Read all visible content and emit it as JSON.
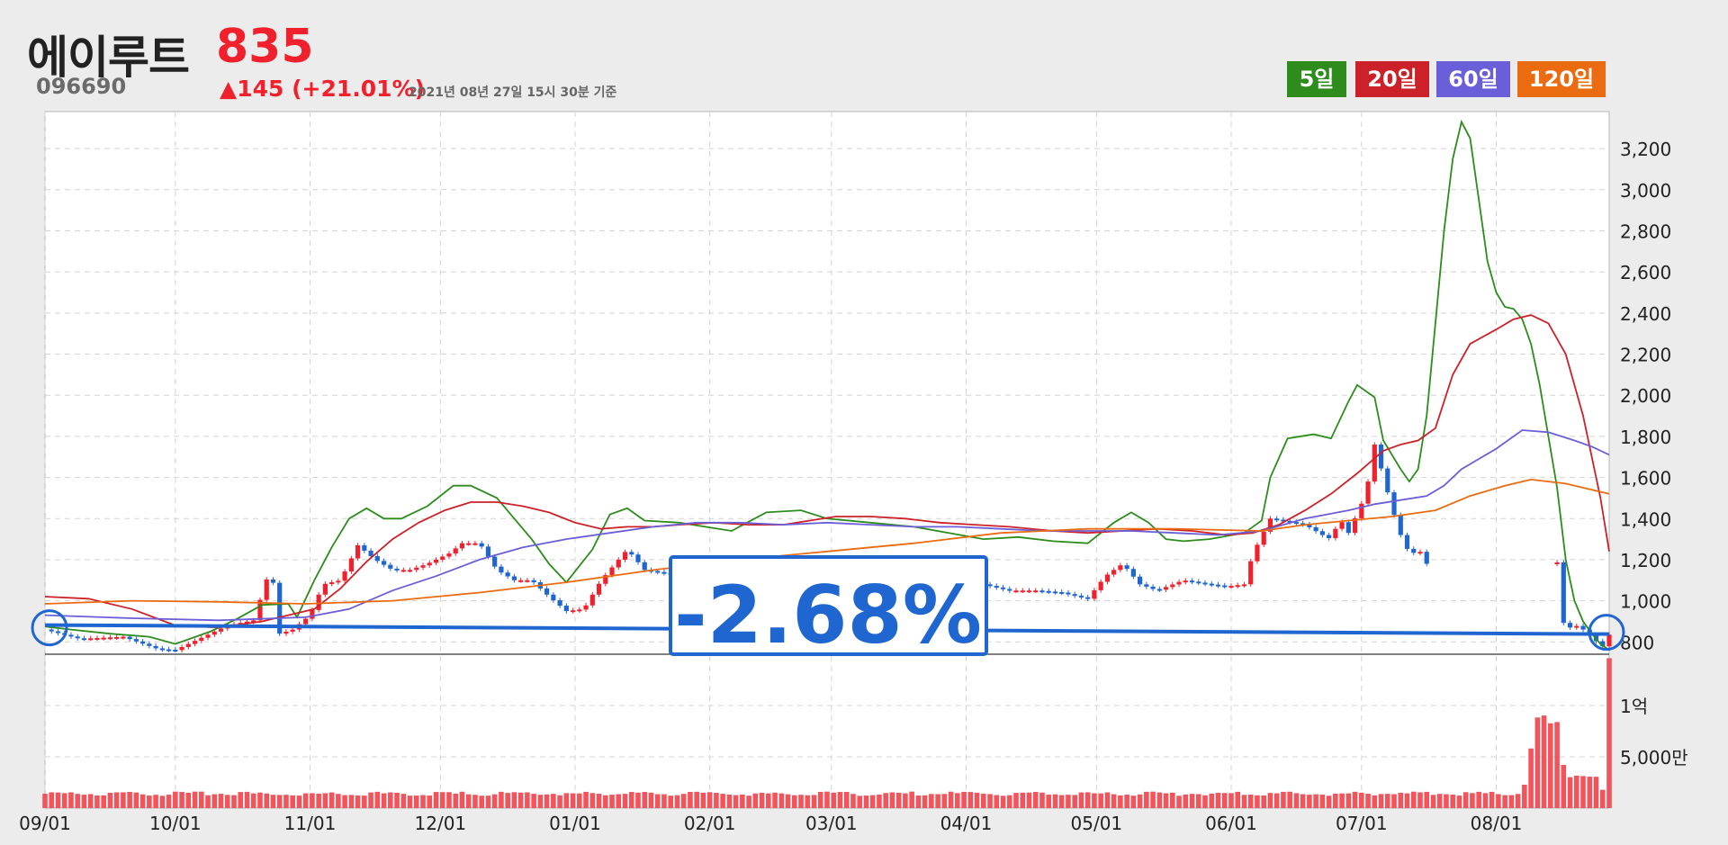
{
  "header": {
    "name": "에이루트",
    "code": "096690",
    "price": "835",
    "change": "▲145 (+21.01%)",
    "as_of": "2021년 08년 27일 15시 30분 기준"
  },
  "legend": [
    {
      "label": "5일",
      "color": "#2d8c1c"
    },
    {
      "label": "20일",
      "color": "#cc2129"
    },
    {
      "label": "60일",
      "color": "#6a5fd8"
    },
    {
      "label": "120일",
      "color": "#ea6b10"
    }
  ],
  "annotation": {
    "label": "-2.68%",
    "color": "#1f66d1"
  },
  "colors": {
    "up": "#f0202c",
    "down": "#1f66d1",
    "volume": "#f2545c",
    "ma5": "#2d8c1c",
    "ma20": "#cc2129",
    "ma60": "#6a5fd8",
    "ma120": "#ea6b10"
  },
  "chart_data": {
    "type": "line",
    "ylim": [
      740,
      3380
    ],
    "y_ticks": [
      {
        "value": 800,
        "label": "800"
      },
      {
        "value": 1000,
        "label": "1,000"
      },
      {
        "value": 1200,
        "label": "1,200"
      },
      {
        "value": 1400,
        "label": "1,400"
      },
      {
        "value": 1600,
        "label": "1,600"
      },
      {
        "value": 1800,
        "label": "1,800"
      },
      {
        "value": 2000,
        "label": "2,000"
      },
      {
        "value": 2200,
        "label": "2,200"
      },
      {
        "value": 2400,
        "label": "2,400"
      },
      {
        "value": 2600,
        "label": "2,600"
      },
      {
        "value": 2800,
        "label": "2,800"
      },
      {
        "value": 3000,
        "label": "3,000"
      },
      {
        "value": 3200,
        "label": "3,200"
      }
    ],
    "volume_ticks": [
      {
        "value": 100000000,
        "label": "1억"
      },
      {
        "value": 50000000,
        "label": "5,000만"
      }
    ],
    "x_ticks": [
      {
        "day": 0,
        "label": "09/01"
      },
      {
        "day": 30,
        "label": "10/01"
      },
      {
        "day": 61,
        "label": "11/01"
      },
      {
        "day": 91,
        "label": "12/01"
      },
      {
        "day": 122,
        "label": "01/01"
      },
      {
        "day": 153,
        "label": "02/01"
      },
      {
        "day": 181,
        "label": "03/01"
      },
      {
        "day": 212,
        "label": "04/01"
      },
      {
        "day": 242,
        "label": "05/01"
      },
      {
        "day": 273,
        "label": "06/01"
      },
      {
        "day": 303,
        "label": "07/01"
      },
      {
        "day": 334,
        "label": "08/01"
      }
    ],
    "x_range_days": [
      0,
      360
    ],
    "reference_line": {
      "start_day": 0,
      "end_day": 360,
      "start_value": 860,
      "end_value": 838
    },
    "price_anchors": [
      [
        0,
        860
      ],
      [
        8,
        815
      ],
      [
        18,
        825
      ],
      [
        26,
        765
      ],
      [
        30,
        760
      ],
      [
        36,
        820
      ],
      [
        42,
        880
      ],
      [
        48,
        905
      ],
      [
        52,
        1170
      ],
      [
        54,
        840
      ],
      [
        57,
        860
      ],
      [
        61,
        930
      ],
      [
        64,
        1080
      ],
      [
        68,
        1100
      ],
      [
        72,
        1270
      ],
      [
        76,
        1200
      ],
      [
        80,
        1150
      ],
      [
        84,
        1150
      ],
      [
        88,
        1180
      ],
      [
        93,
        1230
      ],
      [
        96,
        1280
      ],
      [
        100,
        1280
      ],
      [
        104,
        1150
      ],
      [
        108,
        1100
      ],
      [
        112,
        1100
      ],
      [
        116,
        1020
      ],
      [
        120,
        950
      ],
      [
        124,
        960
      ],
      [
        128,
        1100
      ],
      [
        132,
        1200
      ],
      [
        134,
        1250
      ],
      [
        138,
        1150
      ],
      [
        144,
        1130
      ],
      [
        150,
        1150
      ],
      [
        158,
        1130
      ],
      [
        166,
        1160
      ],
      [
        172,
        1150
      ],
      [
        176,
        1180
      ],
      [
        180,
        1170
      ],
      [
        186,
        1140
      ],
      [
        192,
        1150
      ],
      [
        198,
        1170
      ],
      [
        204,
        1150
      ],
      [
        210,
        1120
      ],
      [
        216,
        1080
      ],
      [
        222,
        1050
      ],
      [
        228,
        1050
      ],
      [
        234,
        1040
      ],
      [
        240,
        1010
      ],
      [
        244,
        1120
      ],
      [
        248,
        1180
      ],
      [
        252,
        1080
      ],
      [
        256,
        1050
      ],
      [
        262,
        1100
      ],
      [
        268,
        1080
      ],
      [
        272,
        1070
      ],
      [
        276,
        1080
      ],
      [
        278,
        1230
      ],
      [
        282,
        1400
      ],
      [
        290,
        1370
      ],
      [
        294,
        1320
      ],
      [
        296,
        1300
      ],
      [
        298,
        1400
      ],
      [
        300,
        1330
      ],
      [
        304,
        1520
      ],
      [
        306,
        1760
      ],
      [
        310,
        1450
      ],
      [
        312,
        1320
      ],
      [
        314,
        1230
      ],
      [
        317,
        1240
      ],
      [
        318,
        1180
      ],
      [
        322,
        1630
      ],
      [
        324,
        2560
      ],
      [
        326,
        2900
      ],
      [
        328,
        2380
      ],
      [
        330,
        2020
      ],
      [
        332,
        1900
      ],
      [
        334,
        1760
      ],
      [
        336,
        1700
      ],
      [
        338,
        1650
      ],
      [
        340,
        1750
      ],
      [
        342,
        1720
      ],
      [
        344,
        1750
      ],
      [
        346,
        1760
      ],
      [
        349,
        900
      ],
      [
        351,
        870
      ],
      [
        353,
        880
      ],
      [
        356,
        820
      ],
      [
        359,
        770
      ],
      [
        360,
        835
      ]
    ],
    "gap_days": [
      318,
      348
    ],
    "volume_anchors": [
      [
        0,
        13000000
      ],
      [
        340,
        13000000
      ],
      [
        344,
        90000000
      ],
      [
        346,
        65000000
      ],
      [
        348,
        75000000
      ],
      [
        350,
        30000000
      ],
      [
        356,
        33000000
      ],
      [
        358,
        18000000
      ],
      [
        359,
        15000000
      ],
      [
        360,
        128000000
      ]
    ],
    "volume_max": 150000000,
    "series": [
      {
        "key": "ma5",
        "name": "5일",
        "points": [
          [
            0,
            875
          ],
          [
            6,
            860
          ],
          [
            15,
            840
          ],
          [
            24,
            825
          ],
          [
            30,
            790
          ],
          [
            38,
            850
          ],
          [
            44,
            910
          ],
          [
            50,
            980
          ],
          [
            56,
            985
          ],
          [
            58,
            920
          ],
          [
            62,
            1100
          ],
          [
            66,
            1260
          ],
          [
            70,
            1400
          ],
          [
            74,
            1450
          ],
          [
            78,
            1400
          ],
          [
            82,
            1400
          ],
          [
            88,
            1460
          ],
          [
            94,
            1560
          ],
          [
            98,
            1560
          ],
          [
            104,
            1500
          ],
          [
            108,
            1400
          ],
          [
            112,
            1300
          ],
          [
            116,
            1180
          ],
          [
            120,
            1090
          ],
          [
            126,
            1250
          ],
          [
            130,
            1420
          ],
          [
            134,
            1450
          ],
          [
            138,
            1390
          ],
          [
            146,
            1380
          ],
          [
            152,
            1360
          ],
          [
            158,
            1340
          ],
          [
            166,
            1430
          ],
          [
            174,
            1440
          ],
          [
            180,
            1400
          ],
          [
            190,
            1380
          ],
          [
            200,
            1360
          ],
          [
            208,
            1330
          ],
          [
            216,
            1300
          ],
          [
            224,
            1310
          ],
          [
            232,
            1290
          ],
          [
            240,
            1280
          ],
          [
            246,
            1380
          ],
          [
            250,
            1430
          ],
          [
            254,
            1380
          ],
          [
            258,
            1300
          ],
          [
            262,
            1290
          ],
          [
            268,
            1300
          ],
          [
            276,
            1330
          ],
          [
            280,
            1390
          ],
          [
            282,
            1600
          ],
          [
            286,
            1790
          ],
          [
            292,
            1810
          ],
          [
            296,
            1790
          ],
          [
            300,
            1970
          ],
          [
            302,
            2050
          ],
          [
            306,
            1990
          ],
          [
            308,
            1780
          ],
          [
            312,
            1640
          ],
          [
            314,
            1580
          ],
          [
            316,
            1640
          ],
          [
            318,
            1900
          ],
          [
            320,
            2350
          ],
          [
            322,
            2800
          ],
          [
            324,
            3150
          ],
          [
            326,
            3330
          ],
          [
            328,
            3250
          ],
          [
            330,
            2950
          ],
          [
            332,
            2650
          ],
          [
            334,
            2500
          ],
          [
            336,
            2430
          ],
          [
            338,
            2420
          ],
          [
            340,
            2370
          ],
          [
            342,
            2250
          ],
          [
            344,
            2050
          ],
          [
            346,
            1800
          ],
          [
            348,
            1550
          ],
          [
            350,
            1200
          ],
          [
            352,
            1000
          ],
          [
            354,
            900
          ],
          [
            356,
            840
          ],
          [
            358,
            790
          ],
          [
            360,
            760
          ]
        ]
      },
      {
        "key": "ma20",
        "name": "20일",
        "points": [
          [
            0,
            1020
          ],
          [
            10,
            1010
          ],
          [
            20,
            960
          ],
          [
            30,
            880
          ],
          [
            40,
            870
          ],
          [
            50,
            900
          ],
          [
            56,
            930
          ],
          [
            62,
            960
          ],
          [
            68,
            1060
          ],
          [
            74,
            1190
          ],
          [
            80,
            1300
          ],
          [
            86,
            1380
          ],
          [
            92,
            1440
          ],
          [
            98,
            1480
          ],
          [
            104,
            1480
          ],
          [
            110,
            1460
          ],
          [
            116,
            1430
          ],
          [
            122,
            1380
          ],
          [
            128,
            1350
          ],
          [
            134,
            1360
          ],
          [
            140,
            1360
          ],
          [
            146,
            1370
          ],
          [
            154,
            1380
          ],
          [
            162,
            1370
          ],
          [
            170,
            1370
          ],
          [
            176,
            1390
          ],
          [
            182,
            1410
          ],
          [
            190,
            1410
          ],
          [
            198,
            1400
          ],
          [
            206,
            1380
          ],
          [
            214,
            1370
          ],
          [
            222,
            1360
          ],
          [
            232,
            1340
          ],
          [
            240,
            1330
          ],
          [
            248,
            1340
          ],
          [
            256,
            1350
          ],
          [
            264,
            1340
          ],
          [
            272,
            1320
          ],
          [
            278,
            1330
          ],
          [
            284,
            1370
          ],
          [
            290,
            1440
          ],
          [
            296,
            1520
          ],
          [
            302,
            1620
          ],
          [
            308,
            1730
          ],
          [
            312,
            1760
          ],
          [
            316,
            1780
          ],
          [
            320,
            1840
          ],
          [
            324,
            2100
          ],
          [
            328,
            2250
          ],
          [
            334,
            2320
          ],
          [
            338,
            2370
          ],
          [
            342,
            2390
          ],
          [
            346,
            2350
          ],
          [
            350,
            2200
          ],
          [
            354,
            1900
          ],
          [
            358,
            1500
          ],
          [
            360,
            1240
          ]
        ]
      },
      {
        "key": "ma60",
        "name": "60일",
        "points": [
          [
            0,
            930
          ],
          [
            20,
            915
          ],
          [
            40,
            905
          ],
          [
            60,
            920
          ],
          [
            70,
            960
          ],
          [
            80,
            1050
          ],
          [
            90,
            1120
          ],
          [
            100,
            1200
          ],
          [
            110,
            1260
          ],
          [
            120,
            1300
          ],
          [
            130,
            1330
          ],
          [
            140,
            1360
          ],
          [
            150,
            1380
          ],
          [
            160,
            1380
          ],
          [
            170,
            1370
          ],
          [
            180,
            1380
          ],
          [
            190,
            1370
          ],
          [
            200,
            1360
          ],
          [
            210,
            1360
          ],
          [
            220,
            1350
          ],
          [
            230,
            1340
          ],
          [
            240,
            1340
          ],
          [
            250,
            1340
          ],
          [
            260,
            1330
          ],
          [
            270,
            1320
          ],
          [
            280,
            1340
          ],
          [
            290,
            1400
          ],
          [
            300,
            1440
          ],
          [
            306,
            1470
          ],
          [
            312,
            1490
          ],
          [
            318,
            1510
          ],
          [
            322,
            1560
          ],
          [
            326,
            1640
          ],
          [
            330,
            1690
          ],
          [
            334,
            1740
          ],
          [
            340,
            1830
          ],
          [
            346,
            1820
          ],
          [
            352,
            1780
          ],
          [
            356,
            1750
          ],
          [
            360,
            1710
          ]
        ]
      },
      {
        "key": "ma120",
        "name": "120일",
        "points": [
          [
            0,
            985
          ],
          [
            20,
            1000
          ],
          [
            40,
            995
          ],
          [
            60,
            985
          ],
          [
            80,
            1000
          ],
          [
            100,
            1040
          ],
          [
            120,
            1090
          ],
          [
            140,
            1150
          ],
          [
            160,
            1200
          ],
          [
            180,
            1240
          ],
          [
            200,
            1280
          ],
          [
            220,
            1330
          ],
          [
            240,
            1350
          ],
          [
            260,
            1350
          ],
          [
            280,
            1340
          ],
          [
            290,
            1370
          ],
          [
            300,
            1390
          ],
          [
            310,
            1410
          ],
          [
            320,
            1440
          ],
          [
            328,
            1510
          ],
          [
            336,
            1560
          ],
          [
            342,
            1590
          ],
          [
            350,
            1570
          ],
          [
            356,
            1540
          ],
          [
            360,
            1520
          ]
        ]
      }
    ]
  }
}
